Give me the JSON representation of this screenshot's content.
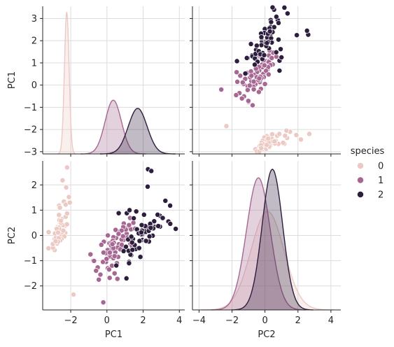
{
  "chart_data": {
    "type": "pairplot",
    "variables": [
      "PC1",
      "PC2"
    ],
    "hue": "species",
    "legend": {
      "title": "species",
      "entries": [
        {
          "label": "0",
          "color": "#ecc9c3"
        },
        {
          "label": "1",
          "color": "#a76793"
        },
        {
          "label": "2",
          "color": "#2d1e3e"
        }
      ],
      "position": "right"
    },
    "grid": true,
    "axes": {
      "PC1": {
        "range": [
          -3.55,
          4.3
        ],
        "ticks": [
          -2,
          0,
          2,
          4
        ],
        "tick_labels": [
          "−2",
          "0",
          "2",
          "4"
        ]
      },
      "PC1_y": {
        "range": [
          -3.1,
          3.55
        ],
        "ticks": [
          -3,
          -2,
          -1,
          0,
          1,
          2,
          3
        ],
        "tick_labels": [
          "−3",
          "−2",
          "−1",
          "0",
          "1",
          "2",
          "3"
        ]
      },
      "PC2": {
        "range": [
          -4.4,
          4.6
        ],
        "ticks": [
          -4,
          -2,
          0,
          2,
          4
        ],
        "tick_labels": [
          "−4",
          "−2",
          "0",
          "2",
          "4"
        ]
      },
      "PC2_y": {
        "range": [
          -2.95,
          2.95
        ],
        "ticks": [
          -2,
          -1,
          0,
          1,
          2
        ],
        "tick_labels": [
          "−2",
          "−1",
          "0",
          "1",
          "2"
        ]
      }
    },
    "kde": {
      "PC1": [
        {
          "name": "0",
          "mean": -2.22,
          "sd": 0.13,
          "peak": 3.27
        },
        {
          "name": "1",
          "mean": 0.35,
          "sd": 0.45,
          "peak": -0.68
        },
        {
          "name": "2",
          "mean": 1.7,
          "sd": 0.52,
          "peak": -1.05
        }
      ],
      "PC2": [
        {
          "name": "0",
          "mean": 0.15,
          "sd": 1.0,
          "peak": 0.95
        },
        {
          "name": "1",
          "mean": -0.4,
          "sd": 0.72,
          "peak": 2.28
        },
        {
          "name": "2",
          "mean": 0.45,
          "sd": 0.62,
          "peak": 2.62
        }
      ]
    },
    "points": {
      "0": [
        [
          -2.68,
          0.32
        ],
        [
          -2.71,
          -0.18
        ],
        [
          -2.89,
          -0.14
        ],
        [
          -2.75,
          -0.32
        ],
        [
          -2.73,
          0.33
        ],
        [
          -2.28,
          0.74
        ],
        [
          -2.82,
          -0.09
        ],
        [
          -2.63,
          0.16
        ],
        [
          -2.89,
          -0.58
        ],
        [
          -2.67,
          -0.11
        ],
        [
          -2.51,
          0.65
        ],
        [
          -2.61,
          0.02
        ],
        [
          -2.79,
          -0.24
        ],
        [
          -3.23,
          -0.51
        ],
        [
          -2.64,
          1.18
        ],
        [
          -2.38,
          1.34
        ],
        [
          -2.62,
          0.81
        ],
        [
          -2.65,
          0.31
        ],
        [
          -2.2,
          0.87
        ],
        [
          -2.59,
          0.51
        ],
        [
          -2.31,
          0.39
        ],
        [
          -2.54,
          0.43
        ],
        [
          -3.22,
          0.13
        ],
        [
          -2.3,
          0.1
        ],
        [
          -2.36,
          -0.04
        ],
        [
          -2.51,
          -0.15
        ],
        [
          -2.47,
          0.13
        ],
        [
          -2.56,
          0.37
        ],
        [
          -2.64,
          0.31
        ],
        [
          -2.63,
          -0.19
        ],
        [
          -2.59,
          -0.2
        ],
        [
          -2.41,
          0.41
        ],
        [
          -2.65,
          0.81
        ],
        [
          -2.6,
          1.1
        ],
        [
          -2.67,
          -0.11
        ],
        [
          -2.87,
          0.08
        ],
        [
          -2.63,
          0.6
        ],
        [
          -2.8,
          0.27
        ],
        [
          -2.98,
          -0.49
        ],
        [
          -2.59,
          0.23
        ],
        [
          -2.77,
          0.26
        ],
        [
          -1.85,
          -2.34
        ],
        [
          -2.99,
          -0.34
        ],
        [
          -2.41,
          0.19
        ],
        [
          -2.21,
          0.44
        ],
        [
          -2.71,
          -0.25
        ],
        [
          -2.54,
          0.5
        ],
        [
          -2.84,
          -0.23
        ],
        [
          -2.54,
          0.58
        ],
        [
          -2.7,
          0.11
        ],
        [
          -2.2,
          2.69
        ],
        [
          -2.45,
          2.18
        ],
        [
          -2.25,
          1.9
        ],
        [
          -2.1,
          1.52
        ],
        [
          -2.28,
          1.22
        ],
        [
          -2.05,
          1.3
        ]
      ],
      "1": [
        [
          1.28,
          0.69
        ],
        [
          0.93,
          0.32
        ],
        [
          1.46,
          0.5
        ],
        [
          0.18,
          -0.83
        ],
        [
          1.09,
          0.07
        ],
        [
          0.64,
          -0.42
        ],
        [
          1.1,
          0.28
        ],
        [
          -0.75,
          -1.0
        ],
        [
          1.04,
          0.23
        ],
        [
          -0.01,
          -0.72
        ],
        [
          -0.51,
          -1.27
        ],
        [
          0.51,
          -0.1
        ],
        [
          0.26,
          -0.55
        ],
        [
          0.98,
          -0.12
        ],
        [
          -0.17,
          -0.25
        ],
        [
          0.93,
          0.47
        ],
        [
          0.66,
          -0.35
        ],
        [
          0.23,
          -0.33
        ],
        [
          0.94,
          -0.54
        ],
        [
          0.04,
          -0.58
        ],
        [
          1.12,
          -0.08
        ],
        [
          0.36,
          -0.07
        ],
        [
          1.3,
          -0.33
        ],
        [
          0.92,
          -0.18
        ],
        [
          0.71,
          0.15
        ],
        [
          0.9,
          0.33
        ],
        [
          1.33,
          0.24
        ],
        [
          1.56,
          0.27
        ],
        [
          0.81,
          -0.16
        ],
        [
          -0.31,
          -0.37
        ],
        [
          -0.07,
          -0.7
        ],
        [
          -0.19,
          -0.68
        ],
        [
          0.14,
          -0.31
        ],
        [
          1.38,
          -0.42
        ],
        [
          0.59,
          -0.48
        ],
        [
          0.81,
          0.19
        ],
        [
          1.22,
          0.41
        ],
        [
          0.82,
          -0.37
        ],
        [
          0.25,
          -0.27
        ],
        [
          0.16,
          -0.68
        ],
        [
          0.46,
          -0.67
        ],
        [
          0.89,
          -0.03
        ],
        [
          0.23,
          -0.4
        ],
        [
          -0.71,
          -1.01
        ],
        [
          0.36,
          -0.5
        ],
        [
          0.33,
          -0.21
        ],
        [
          0.38,
          -0.29
        ],
        [
          0.64,
          0.06
        ],
        [
          -0.91,
          -0.75
        ],
        [
          0.3,
          -0.35
        ],
        [
          -0.36,
          -1.55
        ],
        [
          -0.2,
          -2.65
        ],
        [
          -0.45,
          -1.75
        ],
        [
          0.15,
          -1.68
        ],
        [
          0.42,
          -1.5
        ],
        [
          0.05,
          -1.3
        ],
        [
          -0.05,
          -1.05
        ],
        [
          0.28,
          -1.2
        ],
        [
          0.55,
          -1.1
        ],
        [
          0.35,
          -0.9
        ],
        [
          0.62,
          -0.85
        ],
        [
          -0.6,
          -1.4
        ],
        [
          -0.22,
          -1.05
        ],
        [
          0.12,
          -1.35
        ],
        [
          0.58,
          -1.72
        ],
        [
          -0.02,
          -0.93
        ],
        [
          0.42,
          -0.82
        ],
        [
          0.74,
          -0.55
        ],
        [
          0.05,
          0.0
        ],
        [
          0.48,
          0.22
        ]
      ],
      "2": [
        [
          2.53,
          -0.01
        ],
        [
          1.41,
          -0.57
        ],
        [
          2.62,
          0.34
        ],
        [
          1.97,
          -0.18
        ],
        [
          2.35,
          -0.04
        ],
        [
          3.4,
          0.55
        ],
        [
          0.52,
          -1.19
        ],
        [
          2.93,
          0.35
        ],
        [
          2.32,
          -0.24
        ],
        [
          2.92,
          0.78
        ],
        [
          1.66,
          0.24
        ],
        [
          1.8,
          -0.22
        ],
        [
          2.17,
          0.22
        ],
        [
          1.34,
          -0.78
        ],
        [
          1.59,
          -0.54
        ],
        [
          1.9,
          0.12
        ],
        [
          1.95,
          0.04
        ],
        [
          3.49,
          1.18
        ],
        [
          3.8,
          0.26
        ],
        [
          1.3,
          -0.76
        ],
        [
          2.43,
          0.38
        ],
        [
          1.2,
          -0.61
        ],
        [
          3.5,
          0.46
        ],
        [
          1.39,
          -0.2
        ],
        [
          2.28,
          0.33
        ],
        [
          2.61,
          0.56
        ],
        [
          1.26,
          -0.18
        ],
        [
          1.29,
          -0.12
        ],
        [
          2.12,
          -0.21
        ],
        [
          2.39,
          0.46
        ],
        [
          2.84,
          0.37
        ],
        [
          3.23,
          1.37
        ],
        [
          2.16,
          -0.22
        ],
        [
          1.44,
          -0.14
        ],
        [
          1.78,
          -0.5
        ],
        [
          3.08,
          0.69
        ],
        [
          2.14,
          0.14
        ],
        [
          1.9,
          0.05
        ],
        [
          1.17,
          -0.16
        ],
        [
          2.11,
          0.37
        ],
        [
          2.31,
          0.18
        ],
        [
          1.92,
          0.41
        ],
        [
          1.41,
          -0.57
        ],
        [
          2.56,
          0.28
        ],
        [
          2.42,
          0.3
        ],
        [
          1.94,
          0.19
        ],
        [
          1.53,
          -0.38
        ],
        [
          1.76,
          0.08
        ],
        [
          1.9,
          0.12
        ],
        [
          1.39,
          -0.28
        ],
        [
          2.27,
          2.62
        ],
        [
          2.45,
          2.55
        ],
        [
          2.25,
          1.93
        ],
        [
          1.22,
          -1.05
        ],
        [
          1.05,
          -0.45
        ],
        [
          1.35,
          -0.05
        ],
        [
          0.92,
          -0.62
        ],
        [
          1.48,
          0.68
        ],
        [
          1.1,
          0.88
        ],
        [
          0.65,
          0.88
        ],
        [
          1.25,
          1.0
        ],
        [
          1.62,
          0.95
        ],
        [
          2.05,
          0.82
        ],
        [
          2.8,
          0.82
        ],
        [
          1.85,
          -0.85
        ],
        [
          1.08,
          -1.7
        ],
        [
          1.22,
          -1.1
        ]
      ]
    }
  }
}
